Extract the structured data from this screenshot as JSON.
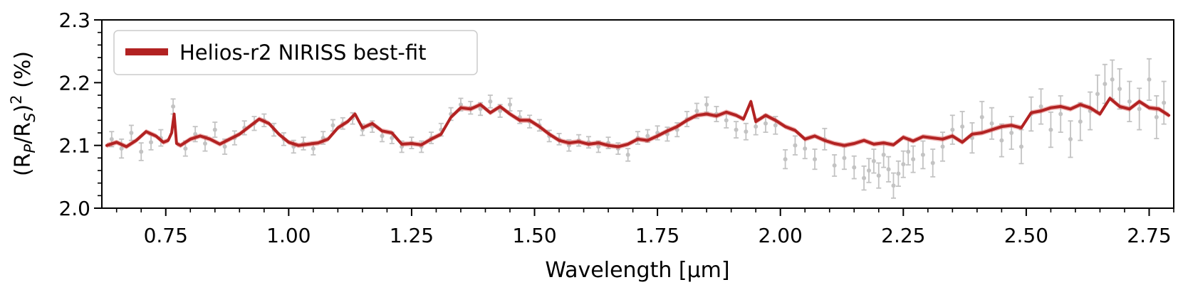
{
  "chart_data": {
    "type": "line",
    "title": "",
    "xlabel": "Wavelength [μm]",
    "ylabel": "(R_P/R_S)^2 (%)",
    "ylabel_parts": {
      "open": "(R",
      "sub1": "P",
      "mid": "/R",
      "sub2": "S",
      "close": ")",
      "sup": "2",
      "unit": " (%)"
    },
    "xlim": [
      0.62,
      2.8
    ],
    "ylim": [
      2.0,
      2.3
    ],
    "x_major_ticks": [
      0.75,
      1.0,
      1.25,
      1.5,
      1.75,
      2.0,
      2.25,
      2.5,
      2.75
    ],
    "x_tick_labels": [
      "0.75",
      "1.00",
      "1.25",
      "1.50",
      "1.75",
      "2.00",
      "2.25",
      "2.50",
      "2.75"
    ],
    "x_minor_step": 0.05,
    "y_major_ticks": [
      2.0,
      2.1,
      2.2,
      2.3
    ],
    "y_tick_labels": [
      "2.0",
      "2.1",
      "2.2",
      "2.3"
    ],
    "y_minor_step": 0.02,
    "grid": false,
    "legend": {
      "position": "top-left",
      "entries": [
        {
          "label": "Helios-r2 NIRISS best-fit",
          "color": "#b22222"
        }
      ]
    },
    "colors": {
      "model": "#b22222",
      "model_band": "#d9534f",
      "data": "#c3c3c3"
    },
    "series": [
      {
        "name": "Helios-r2 NIRISS best-fit",
        "kind": "model_line",
        "x": [
          0.63,
          0.65,
          0.67,
          0.69,
          0.71,
          0.73,
          0.745,
          0.755,
          0.762,
          0.767,
          0.772,
          0.78,
          0.8,
          0.82,
          0.84,
          0.86,
          0.88,
          0.9,
          0.92,
          0.94,
          0.96,
          0.98,
          1.0,
          1.02,
          1.04,
          1.06,
          1.08,
          1.1,
          1.12,
          1.135,
          1.15,
          1.17,
          1.19,
          1.21,
          1.23,
          1.25,
          1.27,
          1.29,
          1.31,
          1.33,
          1.35,
          1.37,
          1.39,
          1.41,
          1.43,
          1.45,
          1.47,
          1.49,
          1.51,
          1.53,
          1.55,
          1.57,
          1.59,
          1.61,
          1.63,
          1.65,
          1.67,
          1.69,
          1.71,
          1.73,
          1.75,
          1.77,
          1.79,
          1.81,
          1.83,
          1.85,
          1.87,
          1.89,
          1.91,
          1.925,
          1.94,
          1.95,
          1.97,
          1.99,
          2.01,
          2.03,
          2.05,
          2.07,
          2.09,
          2.11,
          2.13,
          2.15,
          2.17,
          2.19,
          2.21,
          2.23,
          2.25,
          2.27,
          2.29,
          2.31,
          2.33,
          2.35,
          2.37,
          2.39,
          2.41,
          2.43,
          2.45,
          2.47,
          2.49,
          2.51,
          2.53,
          2.55,
          2.57,
          2.59,
          2.61,
          2.63,
          2.65,
          2.67,
          2.69,
          2.71,
          2.73,
          2.75,
          2.77,
          2.79
        ],
        "y": [
          2.1,
          2.105,
          2.098,
          2.108,
          2.122,
          2.115,
          2.105,
          2.108,
          2.12,
          2.15,
          2.103,
          2.1,
          2.11,
          2.115,
          2.11,
          2.102,
          2.11,
          2.118,
          2.13,
          2.142,
          2.135,
          2.118,
          2.105,
          2.1,
          2.102,
          2.104,
          2.11,
          2.128,
          2.138,
          2.15,
          2.128,
          2.135,
          2.123,
          2.12,
          2.102,
          2.103,
          2.101,
          2.11,
          2.118,
          2.145,
          2.16,
          2.158,
          2.165,
          2.152,
          2.162,
          2.15,
          2.14,
          2.14,
          2.13,
          2.118,
          2.108,
          2.104,
          2.106,
          2.102,
          2.104,
          2.1,
          2.098,
          2.102,
          2.11,
          2.108,
          2.115,
          2.123,
          2.13,
          2.14,
          2.148,
          2.15,
          2.147,
          2.153,
          2.148,
          2.142,
          2.17,
          2.138,
          2.148,
          2.14,
          2.13,
          2.124,
          2.11,
          2.115,
          2.108,
          2.103,
          2.1,
          2.103,
          2.108,
          2.102,
          2.104,
          2.101,
          2.113,
          2.107,
          2.114,
          2.112,
          2.11,
          2.115,
          2.105,
          2.118,
          2.12,
          2.125,
          2.13,
          2.132,
          2.128,
          2.152,
          2.155,
          2.16,
          2.162,
          2.158,
          2.165,
          2.16,
          2.15,
          2.175,
          2.162,
          2.158,
          2.17,
          2.16,
          2.158,
          2.148
        ]
      },
      {
        "name": "Data",
        "kind": "errorbar_points",
        "x": [
          0.64,
          0.66,
          0.68,
          0.7,
          0.72,
          0.74,
          0.765,
          0.79,
          0.81,
          0.83,
          0.85,
          0.87,
          0.89,
          0.91,
          0.93,
          0.95,
          0.97,
          0.99,
          1.01,
          1.03,
          1.05,
          1.07,
          1.09,
          1.11,
          1.13,
          1.15,
          1.17,
          1.19,
          1.21,
          1.23,
          1.25,
          1.27,
          1.29,
          1.31,
          1.33,
          1.35,
          1.37,
          1.39,
          1.41,
          1.43,
          1.45,
          1.47,
          1.49,
          1.51,
          1.53,
          1.55,
          1.57,
          1.59,
          1.61,
          1.63,
          1.65,
          1.67,
          1.69,
          1.71,
          1.73,
          1.75,
          1.77,
          1.79,
          1.81,
          1.83,
          1.85,
          1.87,
          1.89,
          1.91,
          1.93,
          1.95,
          1.97,
          1.99,
          2.01,
          2.03,
          2.05,
          2.07,
          2.09,
          2.11,
          2.13,
          2.15,
          2.17,
          2.18,
          2.19,
          2.2,
          2.21,
          2.22,
          2.23,
          2.24,
          2.25,
          2.26,
          2.27,
          2.29,
          2.31,
          2.33,
          2.35,
          2.37,
          2.39,
          2.41,
          2.43,
          2.45,
          2.47,
          2.49,
          2.51,
          2.53,
          2.55,
          2.57,
          2.59,
          2.61,
          2.63,
          2.645,
          2.66,
          2.675,
          2.69,
          2.71,
          2.73,
          2.75,
          2.765,
          2.78
        ],
        "y": [
          2.11,
          2.095,
          2.12,
          2.09,
          2.105,
          2.112,
          2.162,
          2.095,
          2.118,
          2.103,
          2.125,
          2.098,
          2.112,
          2.128,
          2.135,
          2.14,
          2.125,
          2.11,
          2.098,
          2.103,
          2.095,
          2.112,
          2.132,
          2.135,
          2.143,
          2.125,
          2.13,
          2.115,
          2.112,
          2.098,
          2.104,
          2.098,
          2.112,
          2.125,
          2.15,
          2.165,
          2.16,
          2.158,
          2.17,
          2.155,
          2.165,
          2.145,
          2.138,
          2.132,
          2.115,
          2.11,
          2.1,
          2.108,
          2.105,
          2.098,
          2.104,
          2.095,
          2.085,
          2.112,
          2.115,
          2.12,
          2.118,
          2.125,
          2.142,
          2.155,
          2.165,
          2.15,
          2.14,
          2.125,
          2.122,
          2.13,
          2.135,
          2.132,
          2.078,
          2.1,
          2.095,
          2.078,
          2.11,
          2.068,
          2.08,
          2.065,
          2.048,
          2.06,
          2.075,
          2.052,
          2.085,
          2.062,
          2.036,
          2.055,
          2.07,
          2.09,
          2.078,
          2.085,
          2.072,
          2.098,
          2.125,
          2.13,
          2.112,
          2.145,
          2.135,
          2.108,
          2.12,
          2.098,
          2.15,
          2.162,
          2.125,
          2.15,
          2.11,
          2.138,
          2.155,
          2.182,
          2.198,
          2.205,
          2.19,
          2.17,
          2.158,
          2.205,
          2.145,
          2.168
        ],
        "err": [
          0.012,
          0.015,
          0.012,
          0.014,
          0.012,
          0.013,
          0.012,
          0.012,
          0.012,
          0.012,
          0.012,
          0.012,
          0.011,
          0.011,
          0.011,
          0.01,
          0.01,
          0.01,
          0.01,
          0.01,
          0.01,
          0.01,
          0.009,
          0.009,
          0.009,
          0.009,
          0.009,
          0.009,
          0.009,
          0.009,
          0.009,
          0.009,
          0.009,
          0.01,
          0.01,
          0.01,
          0.01,
          0.01,
          0.01,
          0.01,
          0.01,
          0.01,
          0.01,
          0.009,
          0.009,
          0.009,
          0.009,
          0.009,
          0.009,
          0.009,
          0.009,
          0.009,
          0.01,
          0.01,
          0.01,
          0.011,
          0.011,
          0.011,
          0.012,
          0.012,
          0.012,
          0.012,
          0.012,
          0.013,
          0.013,
          0.013,
          0.014,
          0.014,
          0.015,
          0.015,
          0.016,
          0.016,
          0.017,
          0.017,
          0.018,
          0.018,
          0.019,
          0.019,
          0.019,
          0.02,
          0.02,
          0.02,
          0.02,
          0.02,
          0.021,
          0.021,
          0.021,
          0.022,
          0.022,
          0.023,
          0.023,
          0.024,
          0.024,
          0.025,
          0.025,
          0.026,
          0.026,
          0.027,
          0.027,
          0.028,
          0.028,
          0.029,
          0.029,
          0.03,
          0.03,
          0.03,
          0.031,
          0.031,
          0.032,
          0.032,
          0.033,
          0.033,
          0.034,
          0.034
        ]
      }
    ]
  }
}
